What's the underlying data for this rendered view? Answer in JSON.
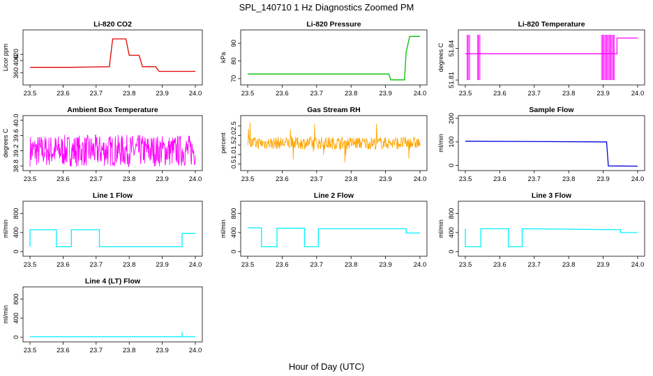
{
  "title": "SPL_140710  1 Hz Diagnostics Zoomed PM",
  "xlabel": "Hour of Day (UTC)",
  "colors": {
    "co2": "#e00000",
    "pressure": "#00c000",
    "temperature": "#ff00ff",
    "box_temperature": "#ff00ff",
    "rh": "#ffa500",
    "sample_flow": "#0000dd",
    "line_flow": "#00f0ff"
  },
  "chart_data": [
    {
      "type": "line",
      "id": "co2",
      "title": "Li-820 CO2",
      "ylabel": "Licor ppm",
      "xlim": [
        23.5,
        24.0
      ],
      "ylim": [
        330,
        490
      ],
      "yticks": [
        "360",
        "400",
        "420"
      ],
      "x": [
        23.5,
        23.62,
        23.74,
        23.75,
        23.79,
        23.8,
        23.83,
        23.84,
        23.88,
        23.89,
        24.0
      ],
      "y": [
        378,
        378,
        380,
        470,
        470,
        417,
        417,
        380,
        380,
        365,
        365
      ],
      "color_key": "co2"
    },
    {
      "type": "line",
      "id": "pressure",
      "title": "Li-820 Pressure",
      "ylabel": "kPa",
      "xlim": [
        23.5,
        24.0
      ],
      "ylim": [
        68,
        96
      ],
      "yticks": [
        "70",
        "80",
        "90"
      ],
      "x": [
        23.5,
        23.91,
        23.915,
        23.955,
        23.96,
        23.97,
        24.0
      ],
      "y": [
        72.6,
        72.6,
        69.3,
        69.3,
        85,
        93.9,
        93.9
      ],
      "color_key": "pressure"
    },
    {
      "type": "line",
      "id": "temperature",
      "title": "Li-820 Temperature",
      "ylabel": "degrees C",
      "xlim": [
        23.5,
        24.0
      ],
      "ylim": [
        51.808,
        51.855
      ],
      "yticks": [
        "51.81",
        "51.84"
      ],
      "x": [
        23.5,
        23.94,
        23.94,
        24.0
      ],
      "y": [
        51.835,
        51.835,
        51.85,
        51.85
      ],
      "color_key": "temperature"
    },
    {
      "type": "line",
      "id": "box_temperature",
      "title": "Ambient Box Temperature",
      "ylabel": "degrees C",
      "xlim": [
        23.5,
        24.0
      ],
      "ylim": [
        38.75,
        40.05
      ],
      "yticks": [
        "38.8",
        "39.2",
        "39.6",
        "40.0"
      ],
      "x": [
        23.5,
        24.0
      ],
      "y": [
        39.2,
        39.2
      ],
      "color_key": "box_temperature"
    },
    {
      "type": "line",
      "id": "rh",
      "title": "Gas Stream RH",
      "ylabel": "percent",
      "xlim": [
        23.5,
        24.0
      ],
      "ylim": [
        0.3,
        2.9
      ],
      "yticks": [
        "0.5",
        "1.0",
        "1.5",
        "2.0",
        "2.5"
      ],
      "x": [
        23.5,
        24.0
      ],
      "y": [
        1.6,
        1.6
      ],
      "color_key": "rh"
    },
    {
      "type": "line",
      "id": "sample_flow",
      "title": "Sample Flow",
      "ylabel": "ml/min",
      "xlim": [
        23.5,
        24.0
      ],
      "ylim": [
        -10,
        200
      ],
      "yticks": [
        "0",
        "100",
        "200"
      ],
      "x": [
        23.5,
        23.91,
        23.915,
        24.0
      ],
      "y": [
        103,
        100,
        -2,
        -3
      ],
      "color_key": "sample_flow"
    },
    {
      "type": "line",
      "id": "line1_flow",
      "title": "Line 1 Flow",
      "ylabel": "ml/min",
      "xlim": [
        23.5,
        24.0
      ],
      "ylim": [
        -40,
        1000
      ],
      "yticks": [
        "0",
        "400",
        "800"
      ],
      "x": [
        23.5,
        23.5,
        23.58,
        23.58,
        23.625,
        23.625,
        23.71,
        23.71,
        23.96,
        23.96,
        24.0
      ],
      "y": [
        100,
        460,
        460,
        100,
        100,
        460,
        460,
        100,
        100,
        380,
        380
      ],
      "color_key": "line_flow"
    },
    {
      "type": "line",
      "id": "line2_flow",
      "title": "Line 2 Flow",
      "ylabel": "ml/min",
      "xlim": [
        23.5,
        24.0
      ],
      "ylim": [
        -40,
        1000
      ],
      "yticks": [
        "0",
        "400",
        "800"
      ],
      "x": [
        23.5,
        23.54,
        23.54,
        23.585,
        23.585,
        23.665,
        23.665,
        23.705,
        23.705,
        23.96,
        23.96,
        24.0
      ],
      "y": [
        500,
        500,
        100,
        100,
        490,
        490,
        100,
        100,
        480,
        480,
        390,
        390
      ],
      "color_key": "line_flow"
    },
    {
      "type": "line",
      "id": "line3_flow",
      "title": "Line 3 Flow",
      "ylabel": "ml/min",
      "xlim": [
        23.5,
        24.0
      ],
      "ylim": [
        -40,
        1000
      ],
      "yticks": [
        "0",
        "400",
        "800"
      ],
      "x": [
        23.5,
        23.5,
        23.545,
        23.545,
        23.625,
        23.625,
        23.665,
        23.665,
        23.95,
        23.95,
        24.0
      ],
      "y": [
        480,
        100,
        100,
        480,
        480,
        100,
        100,
        480,
        460,
        400,
        400
      ],
      "color_key": "line_flow"
    },
    {
      "type": "line",
      "id": "line4_flow",
      "title": "Line 4 (LT) Flow",
      "ylabel": "ml/min",
      "xlim": [
        23.5,
        24.0
      ],
      "ylim": [
        -40,
        1000
      ],
      "yticks": [
        "0",
        "400",
        "800"
      ],
      "x": [
        23.5,
        23.96,
        23.96,
        23.96,
        24.0
      ],
      "y": [
        10,
        10,
        110,
        10,
        10
      ],
      "color_key": "line_flow"
    }
  ],
  "xticks": [
    "23.5",
    "23.6",
    "23.7",
    "23.8",
    "23.9",
    "24.0"
  ]
}
